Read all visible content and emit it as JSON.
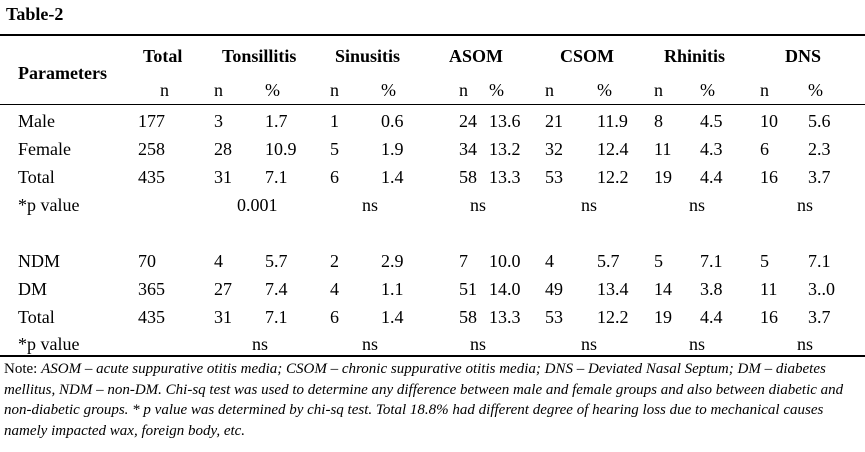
{
  "caption": "Table-2",
  "header": {
    "parameters": "Parameters",
    "groups": [
      "Total",
      "Tonsillitis",
      "Sinusitis",
      "ASOM",
      "CSOM",
      "Rhinitis",
      "DNS"
    ],
    "subheaders": [
      "n",
      "n",
      "%",
      "n",
      "%",
      "n",
      "%",
      "n",
      "%",
      "n",
      "%",
      "n",
      "%"
    ]
  },
  "rows_gender": [
    {
      "label": "Male",
      "cells": [
        "177",
        "3",
        "1.7",
        "1",
        "0.6",
        "24",
        "13.6",
        "21",
        "11.9",
        "8",
        "4.5",
        "10",
        "5.6"
      ]
    },
    {
      "label": "Female",
      "cells": [
        "258",
        "28",
        "10.9",
        "5",
        "1.9",
        "34",
        "13.2",
        "32",
        "12.4",
        "11",
        "4.3",
        "6",
        "2.3"
      ]
    },
    {
      "label": "Total",
      "cells": [
        "435",
        "31",
        "7.1",
        "6",
        "1.4",
        "58",
        "13.3",
        "53",
        "12.2",
        "19",
        "4.4",
        "16",
        "3.7"
      ]
    }
  ],
  "pvalue_gender": {
    "label": "*p value",
    "values": [
      "0.001",
      "ns",
      "ns",
      "ns",
      "ns",
      "ns"
    ]
  },
  "rows_diabetes": [
    {
      "label": "NDM",
      "cells": [
        "70",
        "4",
        "5.7",
        "2",
        "2.9",
        "7",
        "10.0",
        "4",
        "5.7",
        "5",
        "7.1",
        "5",
        "7.1"
      ]
    },
    {
      "label": "DM",
      "cells": [
        "365",
        "27",
        "7.4",
        "4",
        "1.1",
        "51",
        "14.0",
        "49",
        "13.4",
        "14",
        "3.8",
        "11",
        "3..0"
      ]
    },
    {
      "label": "Total",
      "cells": [
        "435",
        "31",
        "7.1",
        "6",
        "1.4",
        "58",
        "13.3",
        "53",
        "12.2",
        "19",
        "4.4",
        "16",
        "3.7"
      ]
    }
  ],
  "pvalue_diabetes": {
    "label": "*p value",
    "values": [
      "ns",
      "ns",
      "ns",
      "ns",
      "ns",
      "ns"
    ]
  },
  "note": {
    "prefix": "Note: ",
    "body": "ASOM – acute suppurative otitis media; CSOM – chronic suppurative otitis media; DNS – Deviated Nasal Septum; DM – diabetes mellitus, NDM – non-DM. Chi-sq test was used to determine any difference between male and female groups and also between diabetic and non-diabetic groups. * p value was determined by chi-sq test. Total 18.8% had different degree of hearing loss due to mechanical causes namely impacted wax, foreign body, etc."
  }
}
